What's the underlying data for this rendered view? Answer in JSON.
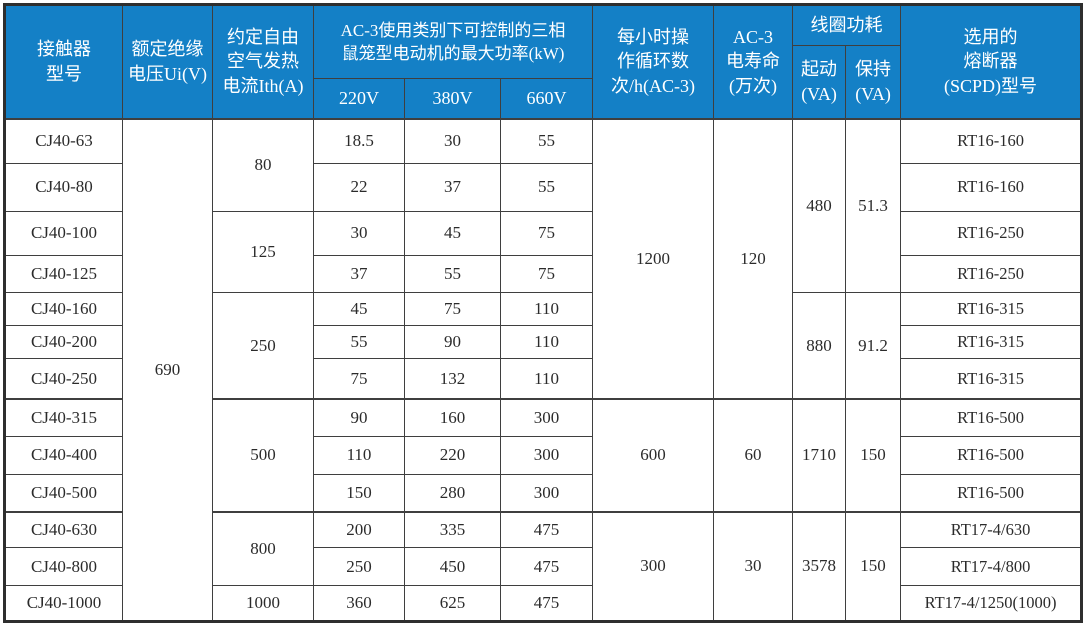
{
  "table": {
    "header": {
      "model": "接触器\n型号",
      "insulation_voltage": "额定绝缘\n电压Ui(V)",
      "thermal_current": "约定自由\n空气发热\n电流Ith(A)",
      "max_power_kw": "AC-3使用类别下可控制的三相\n鼠笼型电动机的最大功率(kW)",
      "volt_220": "220V",
      "volt_380": "380V",
      "volt_660": "660V",
      "cycles_per_hour": "每小时操\n作循环数\n次/h(AC-3)",
      "electrical_life": "AC-3\n电寿命\n(万次)",
      "coil_power": "线圈功耗",
      "coil_start": "起动\n(VA)",
      "coil_hold": "保持\n(VA)",
      "fuse": "选用的\n熔断器\n(SCPD)型号"
    },
    "header_colors": {
      "background": "#1480C6",
      "text": "#FFFFFF",
      "border": "#3F3F3F"
    },
    "body": {
      "rows": [
        [
          {
            "v": "CJ40-63"
          },
          {
            "v": "690",
            "rs": 13
          },
          {
            "v": "80",
            "rs": 2
          },
          {
            "v": "18.5"
          },
          {
            "v": "30"
          },
          {
            "v": "55"
          },
          {
            "v": "1200",
            "rs": 7
          },
          {
            "v": "120",
            "rs": 7
          },
          {
            "v": "480",
            "rs": 4
          },
          {
            "v": "51.3",
            "rs": 4
          },
          {
            "v": "RT16-160"
          }
        ],
        [
          {
            "v": "CJ40-80"
          },
          {
            "v": "22"
          },
          {
            "v": "37"
          },
          {
            "v": "55"
          },
          {
            "v": "RT16-160"
          }
        ],
        [
          {
            "v": "CJ40-100"
          },
          {
            "v": "125",
            "rs": 2
          },
          {
            "v": "30"
          },
          {
            "v": "45"
          },
          {
            "v": "75"
          },
          {
            "v": "RT16-250"
          }
        ],
        [
          {
            "v": "CJ40-125"
          },
          {
            "v": "37"
          },
          {
            "v": "55"
          },
          {
            "v": "75"
          },
          {
            "v": "RT16-250"
          }
        ],
        [
          {
            "v": "CJ40-160"
          },
          {
            "v": "250",
            "rs": 3
          },
          {
            "v": "45"
          },
          {
            "v": "75"
          },
          {
            "v": "110"
          },
          {
            "v": "880",
            "rs": 3
          },
          {
            "v": "91.2",
            "rs": 3
          },
          {
            "v": "RT16-315"
          }
        ],
        [
          {
            "v": "CJ40-200"
          },
          {
            "v": "55"
          },
          {
            "v": "90"
          },
          {
            "v": "110"
          },
          {
            "v": "RT16-315"
          }
        ],
        [
          {
            "v": "CJ40-250"
          },
          {
            "v": "75"
          },
          {
            "v": "132"
          },
          {
            "v": "110"
          },
          {
            "v": "RT16-315"
          }
        ],
        [
          {
            "v": "CJ40-315"
          },
          {
            "v": "500",
            "rs": 3
          },
          {
            "v": "90"
          },
          {
            "v": "160"
          },
          {
            "v": "300"
          },
          {
            "v": "600",
            "rs": 3
          },
          {
            "v": "60",
            "rs": 3
          },
          {
            "v": "1710",
            "rs": 3
          },
          {
            "v": "150",
            "rs": 3
          },
          {
            "v": "RT16-500"
          }
        ],
        [
          {
            "v": "CJ40-400"
          },
          {
            "v": "110"
          },
          {
            "v": "220"
          },
          {
            "v": "300"
          },
          {
            "v": "RT16-500"
          }
        ],
        [
          {
            "v": "CJ40-500"
          },
          {
            "v": "150"
          },
          {
            "v": "280"
          },
          {
            "v": "300"
          },
          {
            "v": "RT16-500"
          }
        ],
        [
          {
            "v": "CJ40-630"
          },
          {
            "v": "800",
            "rs": 2
          },
          {
            "v": "200"
          },
          {
            "v": "335"
          },
          {
            "v": "475"
          },
          {
            "v": "300",
            "rs": 3
          },
          {
            "v": "30",
            "rs": 3
          },
          {
            "v": "3578",
            "rs": 3
          },
          {
            "v": "150",
            "rs": 3
          },
          {
            "v": "RT17-4/630"
          }
        ],
        [
          {
            "v": "CJ40-800"
          },
          {
            "v": "250"
          },
          {
            "v": "450"
          },
          {
            "v": "475"
          },
          {
            "v": "RT17-4/800"
          }
        ],
        [
          {
            "v": "CJ40-1000"
          },
          {
            "v": "1000"
          },
          {
            "v": "360"
          },
          {
            "v": "625"
          },
          {
            "v": "475"
          },
          {
            "v": "RT17-4/1250(1000)"
          }
        ]
      ]
    }
  }
}
